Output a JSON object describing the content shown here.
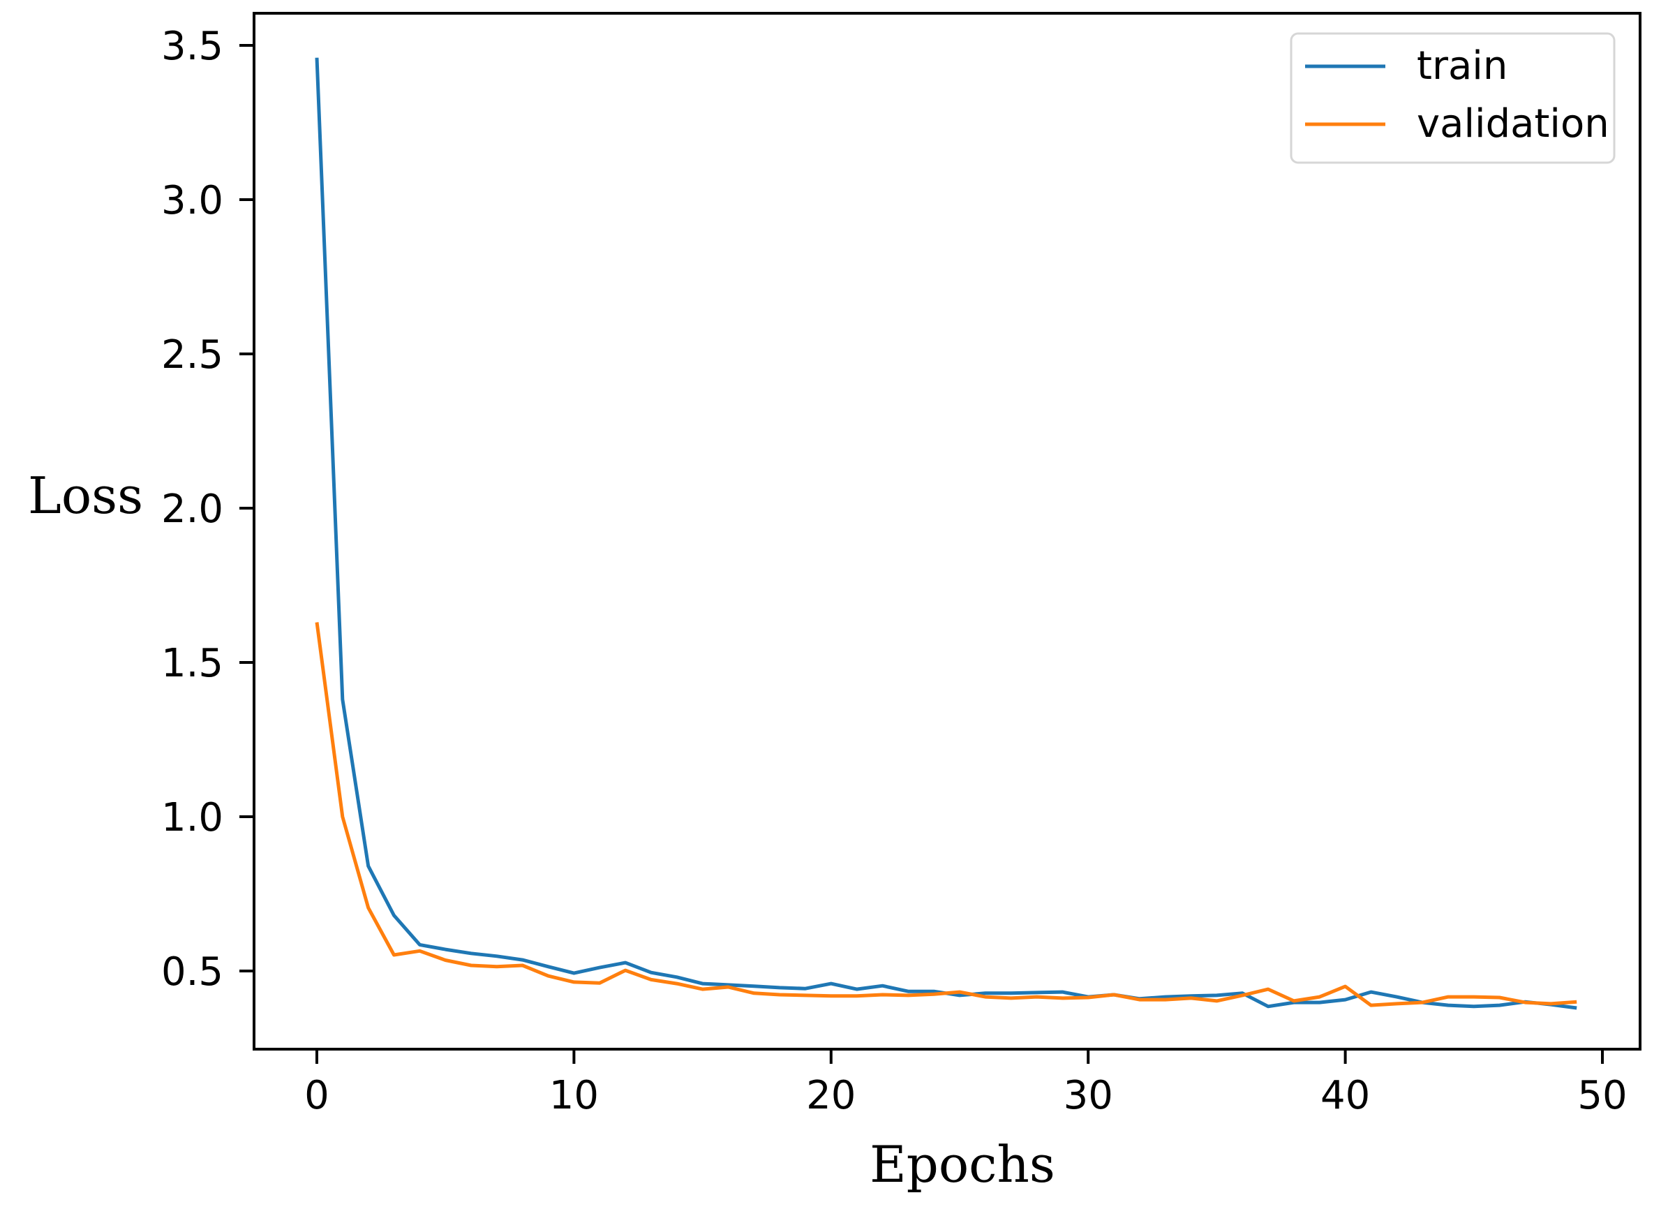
{
  "chart_data": {
    "type": "line",
    "title": "",
    "xlabel": "Epochs",
    "ylabel": "Loss",
    "xlim": [
      -2.5,
      51.5
    ],
    "ylim": [
      0.25,
      3.62
    ],
    "grid": false,
    "legend_position": "upper right",
    "x_ticks": [
      0,
      10,
      20,
      30,
      40,
      50
    ],
    "x_tick_labels": [
      "0",
      "10",
      "20",
      "30",
      "40",
      "50"
    ],
    "y_ticks": [
      0.5,
      1.0,
      1.5,
      2.0,
      2.5,
      3.0,
      3.5
    ],
    "y_tick_labels": [
      "0.5",
      "1.0",
      "1.5",
      "2.0",
      "2.5",
      "3.0",
      "3.5"
    ],
    "x": [
      0,
      1,
      2,
      3,
      4,
      5,
      6,
      7,
      8,
      9,
      10,
      11,
      12,
      13,
      14,
      15,
      16,
      17,
      18,
      19,
      20,
      21,
      22,
      23,
      24,
      25,
      26,
      27,
      28,
      29,
      30,
      31,
      32,
      33,
      34,
      35,
      36,
      37,
      38,
      39,
      40,
      41,
      42,
      43,
      44,
      45,
      46,
      47,
      48,
      49
    ],
    "series": [
      {
        "name": "train",
        "color": "#1f77b4",
        "values": [
          3.46,
          1.38,
          0.84,
          0.68,
          0.585,
          0.57,
          0.557,
          0.548,
          0.536,
          0.514,
          0.493,
          0.511,
          0.527,
          0.495,
          0.48,
          0.459,
          0.455,
          0.451,
          0.446,
          0.443,
          0.459,
          0.441,
          0.452,
          0.434,
          0.434,
          0.421,
          0.428,
          0.428,
          0.43,
          0.432,
          0.416,
          0.423,
          0.41,
          0.416,
          0.419,
          0.421,
          0.428,
          0.385,
          0.398,
          0.398,
          0.407,
          0.432,
          0.416,
          0.398,
          0.389,
          0.385,
          0.389,
          0.4,
          0.391,
          0.38
        ]
      },
      {
        "name": "validation",
        "color": "#ff7f0e",
        "values": [
          1.63,
          1.0,
          0.705,
          0.552,
          0.565,
          0.535,
          0.518,
          0.514,
          0.518,
          0.484,
          0.464,
          0.461,
          0.502,
          0.472,
          0.459,
          0.441,
          0.448,
          0.428,
          0.423,
          0.421,
          0.419,
          0.419,
          0.423,
          0.421,
          0.425,
          0.432,
          0.416,
          0.412,
          0.416,
          0.412,
          0.414,
          0.423,
          0.407,
          0.407,
          0.412,
          0.403,
          0.421,
          0.441,
          0.403,
          0.416,
          0.45,
          0.389,
          0.394,
          0.398,
          0.416,
          0.416,
          0.414,
          0.398,
          0.394,
          0.4
        ]
      }
    ]
  },
  "legend": {
    "items": [
      {
        "label": "train",
        "color": "#1f77b4"
      },
      {
        "label": "validation",
        "color": "#ff7f0e"
      }
    ]
  }
}
